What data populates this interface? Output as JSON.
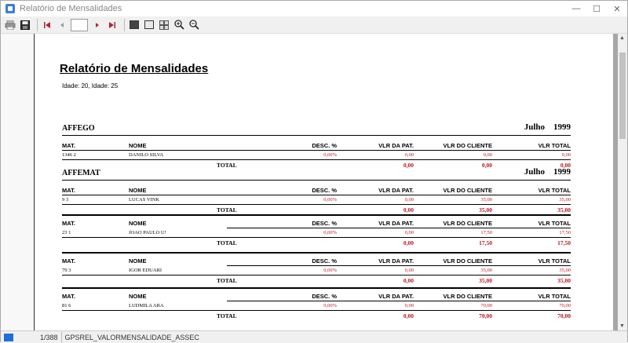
{
  "window": {
    "title": "Relatório de Mensalidades"
  },
  "controls": {
    "minimize": "—",
    "maximize": "☐",
    "close": "✕"
  },
  "toolbar": {
    "page_value": ""
  },
  "status": {
    "page": "1/388",
    "report_id": "GPSREL_VALORMENSALIDADE_ASSEC"
  },
  "report": {
    "title": "Relatório de Mensalidades",
    "subtitle": "Idade: 20,  Idade: 25",
    "headers": {
      "mat": "MAT.",
      "nome": "NOME",
      "desc": "DESC. %",
      "pat": "VLR DA PAT.",
      "cliente": "VLR DO CLIENTE",
      "total": "VLR TOTAL"
    },
    "total_label": "TOTAL",
    "groups": [
      {
        "name": "AFFEGO",
        "month": "Julho",
        "year": "1999",
        "row": {
          "mat": "1346 2",
          "nome": "DANILO SILVA",
          "desc": "0,00%",
          "pat": "0,00",
          "cliente": "0,00",
          "total": "0,00"
        },
        "totals": {
          "pat": "0,00",
          "cliente": "0,00",
          "total": "0,00"
        }
      },
      {
        "name": "AFFEMAT",
        "month": "Julho",
        "year": "1999",
        "row": {
          "mat": "9 3",
          "nome": "LUCAS VINK",
          "desc": "0,00%",
          "pat": "0,00",
          "cliente": "35,00",
          "total": "35,00"
        },
        "totals": {
          "pat": "0,00",
          "cliente": "35,00",
          "total": "35,00"
        }
      },
      {
        "name": "",
        "month": "",
        "year": "",
        "row": {
          "mat": "23 1",
          "nome": "JOAO PAULO U!",
          "desc": "0,00%",
          "pat": "0,00",
          "cliente": "17,50",
          "total": "17,50"
        },
        "totals": {
          "pat": "0,00",
          "cliente": "17,50",
          "total": "17,50"
        }
      },
      {
        "name": "",
        "month": "",
        "year": "",
        "row": {
          "mat": "79 3",
          "nome": "IGOR EDUARI",
          "desc": "0,00%",
          "pat": "0,00",
          "cliente": "35,00",
          "total": "35,00"
        },
        "totals": {
          "pat": "0,00",
          "cliente": "35,00",
          "total": "35,00"
        }
      },
      {
        "name": "",
        "month": "",
        "year": "",
        "row": {
          "mat": "81 6",
          "nome": "LUDMILA ARA",
          "desc": "0,00%",
          "pat": "0,00",
          "cliente": "70,00",
          "total": "70,00"
        },
        "totals": {
          "pat": "0,00",
          "cliente": "70,00",
          "total": "70,00"
        }
      }
    ]
  },
  "icons": [
    "print-icon",
    "save-icon",
    "first-page-icon",
    "prev-page-icon",
    "next-page-icon",
    "last-page-icon",
    "page-width-icon",
    "whole-page-icon",
    "multi-page-icon",
    "zoom-in-icon",
    "zoom-out-icon"
  ]
}
